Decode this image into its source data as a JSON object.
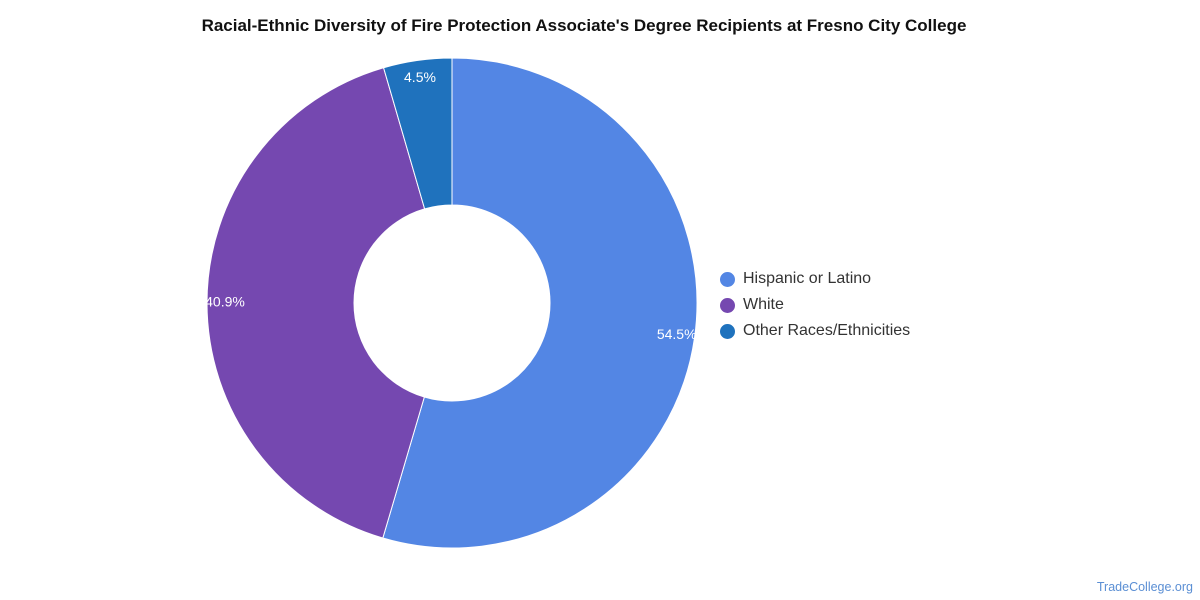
{
  "chart_data": {
    "type": "pie",
    "title": "Racial-Ethnic Diversity of Fire Protection Associate's Degree Recipients at Fresno City College",
    "donut": true,
    "categories": [
      "Hispanic or Latino",
      "White",
      "Other Races/Ethnicities"
    ],
    "values": [
      54.5,
      40.9,
      4.5
    ],
    "labels": [
      "54.5%",
      "40.9%",
      "4.5%"
    ],
    "colors": [
      "#5386e4",
      "#7548b0",
      "#1f72bd"
    ],
    "legend_position": "right"
  },
  "legend": {
    "items": [
      {
        "label": "Hispanic or Latino",
        "color": "#5386e4"
      },
      {
        "label": "White",
        "color": "#7548b0"
      },
      {
        "label": "Other Races/Ethnicities",
        "color": "#1f72bd"
      }
    ]
  },
  "watermark": "TradeCollege.org"
}
